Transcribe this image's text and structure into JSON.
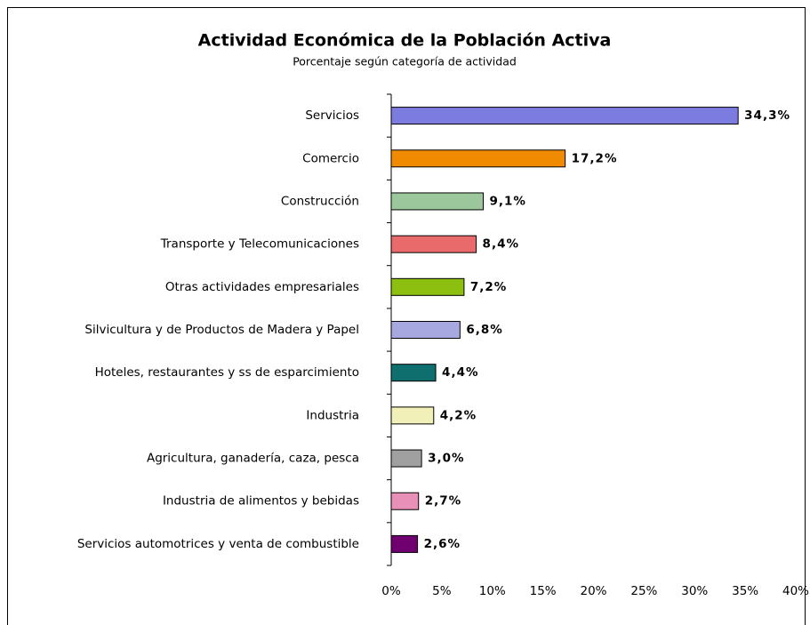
{
  "chart_data": {
    "type": "hbar",
    "title": "Actividad Económica de la Población Activa",
    "subtitle": "Porcentaje según categoría de actividad",
    "categories": [
      "Servicios",
      "Comercio",
      "Construcción",
      "Transporte y Telecomunicaciones",
      "Otras actividades empresariales",
      "Silvicultura y de Productos de Madera y Papel",
      "Hoteles,  restaurantes y ss de esparcimiento",
      "Industria",
      "Agricultura, ganadería, caza, pesca",
      "Industria de alimentos y bebidas",
      "Servicios automotrices y venta de combustible"
    ],
    "values": [
      34.3,
      17.2,
      9.1,
      8.4,
      7.2,
      6.8,
      4.4,
      4.2,
      3.0,
      2.7,
      2.6
    ],
    "value_labels": [
      "34,3%",
      "17,2%",
      "9,1%",
      "8,4%",
      "7,2%",
      "6,8%",
      "4,4%",
      "4,2%",
      "3,0%",
      "2,7%",
      "2,6%"
    ],
    "colors": [
      "#7b7be0",
      "#f08a00",
      "#9cc79c",
      "#e86a6a",
      "#8cbf10",
      "#a8a8e0",
      "#0f6e6e",
      "#f0f0b8",
      "#a0a0a0",
      "#e890b8",
      "#700070"
    ],
    "xlim": [
      0,
      40
    ],
    "xticks": [
      {
        "value": 0,
        "label": "0%"
      },
      {
        "value": 5,
        "label": "5%"
      },
      {
        "value": 10,
        "label": "10%"
      },
      {
        "value": 15,
        "label": "15%"
      },
      {
        "value": 20,
        "label": "20%"
      },
      {
        "value": 25,
        "label": "25%"
      },
      {
        "value": 30,
        "label": "30%"
      },
      {
        "value": 35,
        "label": "35%"
      },
      {
        "value": 40,
        "label": "40%"
      }
    ]
  }
}
